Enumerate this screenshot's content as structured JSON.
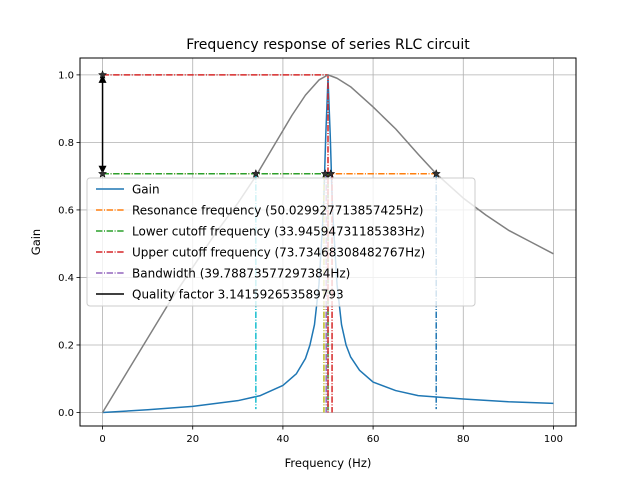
{
  "chart_data": {
    "type": "line",
    "title": "Frequency response of series RLC circuit",
    "xlabel": "Frequency (Hz)",
    "ylabel": "Gain",
    "xlim": [
      -5,
      105
    ],
    "ylim": [
      -0.04,
      1.05
    ],
    "grid": true,
    "legend_position": "center-left",
    "x_ticks": [
      0,
      20,
      40,
      60,
      80,
      100
    ],
    "y_ticks": [
      0.0,
      0.2,
      0.4,
      0.6,
      0.8,
      1.0
    ],
    "x_tick_labels": [
      "0",
      "20",
      "40",
      "60",
      "80",
      "100"
    ],
    "y_tick_labels": [
      "0.0",
      "0.2",
      "0.4",
      "0.6",
      "0.8",
      "1.0"
    ],
    "series": [
      {
        "name": "Gain",
        "color": "#1f77b4",
        "style": "solid",
        "x": [
          0,
          10,
          20,
          30,
          35,
          40,
          43,
          45,
          46,
          47,
          48,
          49,
          49.5,
          50,
          50.5,
          51,
          52,
          53,
          54,
          55,
          57,
          60,
          65,
          70,
          80,
          90,
          100
        ],
        "y": [
          0,
          0.008,
          0.018,
          0.035,
          0.05,
          0.08,
          0.115,
          0.16,
          0.2,
          0.26,
          0.38,
          0.6,
          0.82,
          0.99,
          0.82,
          0.6,
          0.38,
          0.26,
          0.2,
          0.165,
          0.125,
          0.09,
          0.065,
          0.05,
          0.04,
          0.032,
          0.027
        ]
      },
      {
        "name": "Resonance frequency (50.029927713857425Hz)",
        "color": "#ff7f0e",
        "style": "dashdot",
        "x": [
          0,
          74
        ],
        "y": [
          0.707,
          0.707
        ]
      },
      {
        "name": "Lower cutoff frequency (33.94594731185383Hz)",
        "color": "#2ca02c",
        "style": "dashdot",
        "x": [
          0,
          50,
          50
        ],
        "y": [
          0.707,
          0.707,
          0.0
        ]
      },
      {
        "name": "Upper cutoff frequency (73.73468308482767Hz)",
        "color": "#d62728",
        "style": "dashdot",
        "x": [
          0,
          50,
          50
        ],
        "y": [
          1.0,
          1.0,
          0.0
        ]
      },
      {
        "name": "Bandwidth (39.78873577297384Hz)",
        "color": "#9467bd",
        "style": "dashdot",
        "x": [
          49.6,
          49.6
        ],
        "y": [
          0.707,
          0.0
        ]
      },
      {
        "name": "Quality factor 3.141592653589793",
        "color": "#000000",
        "style": "solid",
        "x": [
          0,
          0
        ],
        "y": [
          0.707,
          1.0
        ]
      },
      {
        "name": "",
        "color": "#808080",
        "style": "solid",
        "x": [
          0,
          5,
          10,
          15,
          20,
          25,
          30,
          34,
          38,
          42,
          45,
          48,
          50,
          52,
          55,
          60,
          65,
          70,
          74,
          80,
          85,
          90,
          95,
          100
        ],
        "y": [
          0,
          0.11,
          0.22,
          0.33,
          0.43,
          0.53,
          0.62,
          0.7,
          0.79,
          0.88,
          0.94,
          0.985,
          1.0,
          0.99,
          0.965,
          0.905,
          0.84,
          0.765,
          0.707,
          0.635,
          0.585,
          0.54,
          0.505,
          0.47
        ]
      },
      {
        "name": "",
        "color": "#17becf",
        "style": "dashdot",
        "x": [
          34,
          34
        ],
        "y": [
          0.707,
          0.01
        ]
      },
      {
        "name": "",
        "color": "#1f77b4",
        "style": "dashdot",
        "x": [
          74,
          74
        ],
        "y": [
          0.707,
          0.01
        ]
      },
      {
        "name": "",
        "color": "#bcbd22",
        "style": "dashdot",
        "x": [
          49.1,
          49.1
        ],
        "y": [
          0.707,
          0.0
        ]
      },
      {
        "name": "",
        "color": "#d62728",
        "style": "dashdot",
        "x": [
          50.9,
          50.9
        ],
        "y": [
          0.707,
          0.0
        ]
      }
    ],
    "star_markers": [
      {
        "x": 0,
        "y": 1.0
      },
      {
        "x": 0,
        "y": 0.707
      },
      {
        "x": 34,
        "y": 0.707
      },
      {
        "x": 49.4,
        "y": 0.707
      },
      {
        "x": 50.6,
        "y": 0.707
      },
      {
        "x": 74,
        "y": 0.707
      }
    ],
    "legend_entries": [
      {
        "label": "Gain",
        "color": "#1f77b4",
        "style": "solid"
      },
      {
        "label": "Resonance frequency (50.029927713857425Hz)",
        "color": "#ff7f0e",
        "style": "dashdot"
      },
      {
        "label": "Lower cutoff frequency (33.94594731185383Hz)",
        "color": "#2ca02c",
        "style": "dashdot"
      },
      {
        "label": "Upper cutoff frequency (73.73468308482767Hz)",
        "color": "#d62728",
        "style": "dashdot"
      },
      {
        "label": "Bandwidth (39.78873577297384Hz)",
        "color": "#9467bd",
        "style": "dashdot"
      },
      {
        "label": "Quality factor 3.141592653589793",
        "color": "#000000",
        "style": "solid"
      }
    ]
  }
}
